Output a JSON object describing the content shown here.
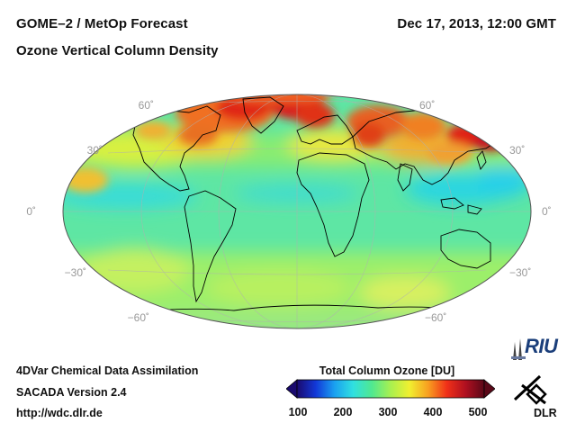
{
  "header": {
    "title": "GOME–2 / MetOp Forecast",
    "date": "Dec 17, 2013, 12:00 GMT",
    "subtitle": "Ozone Vertical Column Density"
  },
  "latitude_labels": {
    "n60": "60˚",
    "n30": "30˚",
    "eq": "0˚",
    "s30": "−30˚",
    "s60": "−60˚"
  },
  "footer": {
    "line1": "4DVar Chemical Data Assimilation",
    "line2": "SACADA Version 2.4",
    "line3": "http://wdc.dlr.de"
  },
  "colorbar": {
    "title": "Total Column Ozone [DU]",
    "min": 100,
    "max": 500,
    "ticks": [
      "100",
      "200",
      "300",
      "400",
      "500"
    ],
    "colors": [
      "#1a0a6e",
      "#1238d8",
      "#1aa0f0",
      "#30e0e0",
      "#50e890",
      "#a8f050",
      "#f0f030",
      "#f8a020",
      "#f03018",
      "#b01020",
      "#5a0818"
    ]
  },
  "logos": {
    "riu": "RIU",
    "dlr": "DLR"
  }
}
